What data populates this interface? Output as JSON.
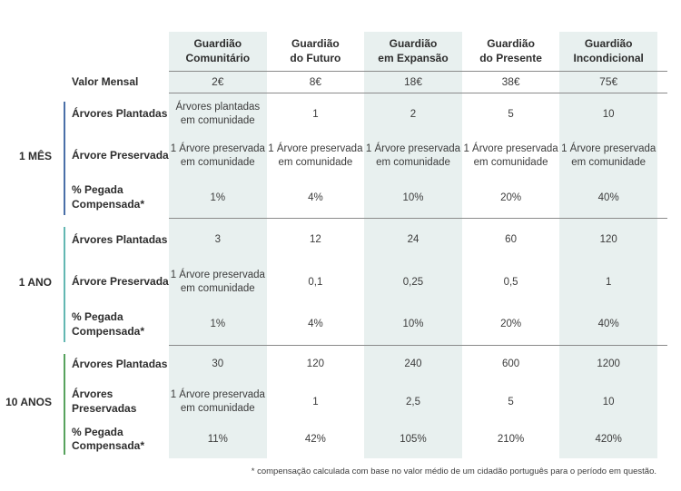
{
  "colors": {
    "band": "#e8f0ef",
    "line": "#8a8a8a",
    "accent_1_mes": "#4a6fa8",
    "accent_1_ano": "#63b7b2",
    "accent_10_anos": "#57a25d"
  },
  "header": {
    "columns": [
      "Guardião\nComunitário",
      "Guardião\ndo Futuro",
      "Guardião\nem Expansão",
      "Guardião\ndo Presente",
      "Guardião\nIncondicional"
    ]
  },
  "valor_mensal": {
    "label": "Valor Mensal",
    "values": [
      "2€",
      "8€",
      "18€",
      "38€",
      "75€"
    ]
  },
  "sections": [
    {
      "period": "1 MÊS",
      "rows": [
        {
          "label": "Árvores Plantadas",
          "values": [
            "Árvores plantadas\nem comunidade",
            "1",
            "2",
            "5",
            "10"
          ]
        },
        {
          "label": "Árvore Preservada",
          "values": [
            "1 Árvore preservada\nem comunidade",
            "1 Árvore preservada\nem comunidade",
            "1 Árvore preservada\nem comunidade",
            "1 Árvore preservada\nem comunidade",
            "1 Árvore preservada\nem comunidade"
          ]
        },
        {
          "label": "% Pegada\nCompensada*",
          "values": [
            "1%",
            "4%",
            "10%",
            "20%",
            "40%"
          ]
        }
      ]
    },
    {
      "period": "1 ANO",
      "rows": [
        {
          "label": "Árvores Plantadas",
          "values": [
            "3",
            "12",
            "24",
            "60",
            "120"
          ]
        },
        {
          "label": "Árvore Preservada",
          "values": [
            "1 Árvore preservada\nem comunidade",
            "0,1",
            "0,25",
            "0,5",
            "1"
          ]
        },
        {
          "label": "% Pegada\nCompensada*",
          "values": [
            "1%",
            "4%",
            "10%",
            "20%",
            "40%"
          ]
        }
      ]
    },
    {
      "period": "10 ANOS",
      "rows": [
        {
          "label": "Árvores Plantadas",
          "values": [
            "30",
            "120",
            "240",
            "600",
            "1200"
          ]
        },
        {
          "label": "Árvores Preservadas",
          "values": [
            "1 Árvore preservada\nem comunidade",
            "1",
            "2,5",
            "5",
            "10"
          ]
        },
        {
          "label": "% Pegada\nCompensada*",
          "values": [
            "11%",
            "42%",
            "105%",
            "210%",
            "420%"
          ]
        }
      ]
    }
  ],
  "footnote": "* compensação calculada com base no valor médio de um cidadão português para o período em questão."
}
